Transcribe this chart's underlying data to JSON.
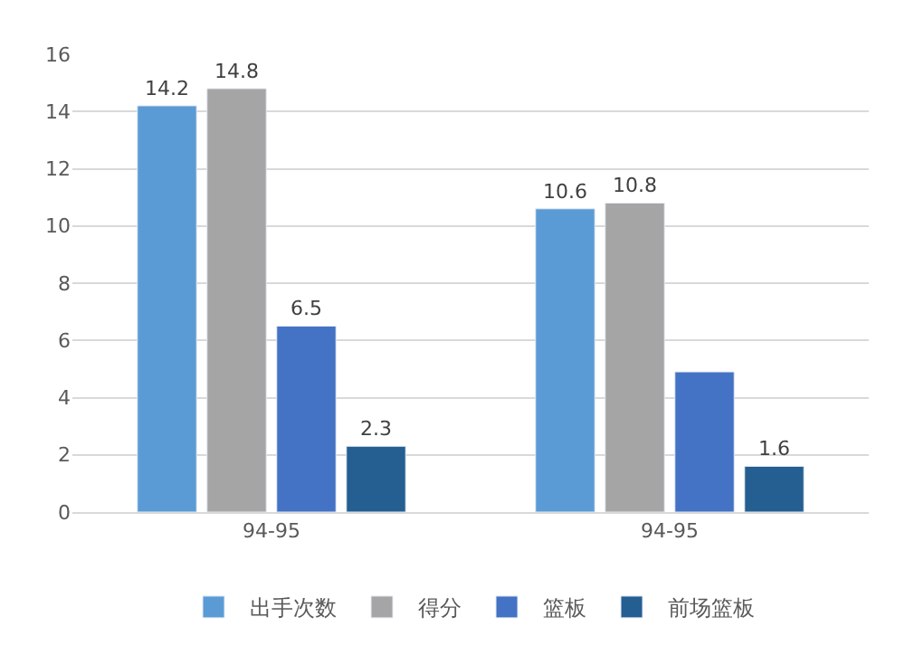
{
  "chart_data": {
    "type": "bar",
    "categories": [
      "94-95",
      "94-95"
    ],
    "series": [
      {
        "name": "出手次数",
        "color": "#5b9bd5",
        "values": [
          14.2,
          10.6
        ],
        "value_labels": [
          "14.2",
          "10.6"
        ]
      },
      {
        "name": "得分",
        "color": "#a5a5a5",
        "values": [
          14.8,
          10.8
        ],
        "value_labels": [
          "14.8",
          "10.8"
        ]
      },
      {
        "name": "篮板",
        "color": "#4472c4",
        "values": [
          6.5,
          4.9
        ],
        "value_labels": [
          "6.5",
          null
        ]
      },
      {
        "name": "前场篮板",
        "color": "#255e91",
        "values": [
          2.3,
          1.6
        ],
        "value_labels": [
          "2.3",
          "1.6"
        ]
      }
    ],
    "ylim": [
      0,
      16
    ],
    "yticks": [
      0,
      2,
      4,
      6,
      8,
      10,
      12,
      14,
      16
    ],
    "grid": "y",
    "legend": "bottom"
  }
}
